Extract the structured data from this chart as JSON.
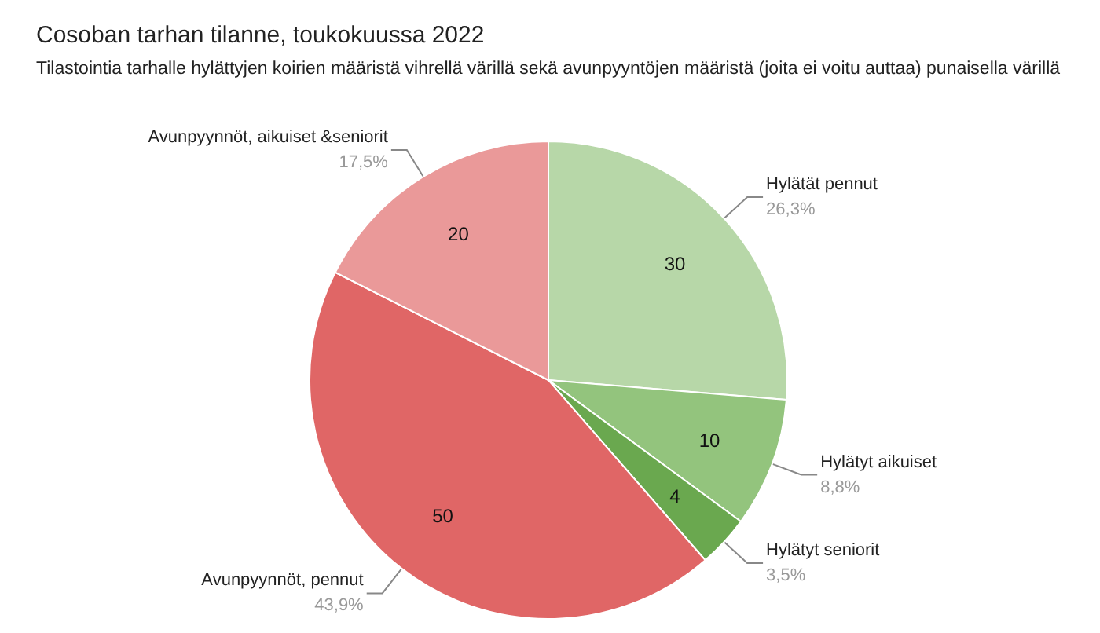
{
  "chart_data": {
    "type": "pie",
    "title": "Cosoban tarhan tilanne, toukokuussa 2022",
    "subtitle": "Tilastointia tarhalle hylättyjen koirien määristä vihrellä värillä sekä avunpyyntöjen määristä (joita ei voitu auttaa) punaisella värillä",
    "categories": [
      "Hylätät pennut",
      "Hylätyt aikuiset",
      "Hylätyt seniorit",
      "Avunpyynnöt, pennut",
      "Avunpyynnöt, aikuiset &seniorit"
    ],
    "values": [
      30,
      10,
      4,
      50,
      20
    ],
    "colors": [
      "#b7d7a8",
      "#93c47d",
      "#6aa84f",
      "#e06666",
      "#ea9999"
    ],
    "annotations": [
      "26,3%",
      "8,8%",
      "3,5%",
      "43,9%",
      "17,5%"
    ],
    "data_labels": true,
    "legend": false
  }
}
